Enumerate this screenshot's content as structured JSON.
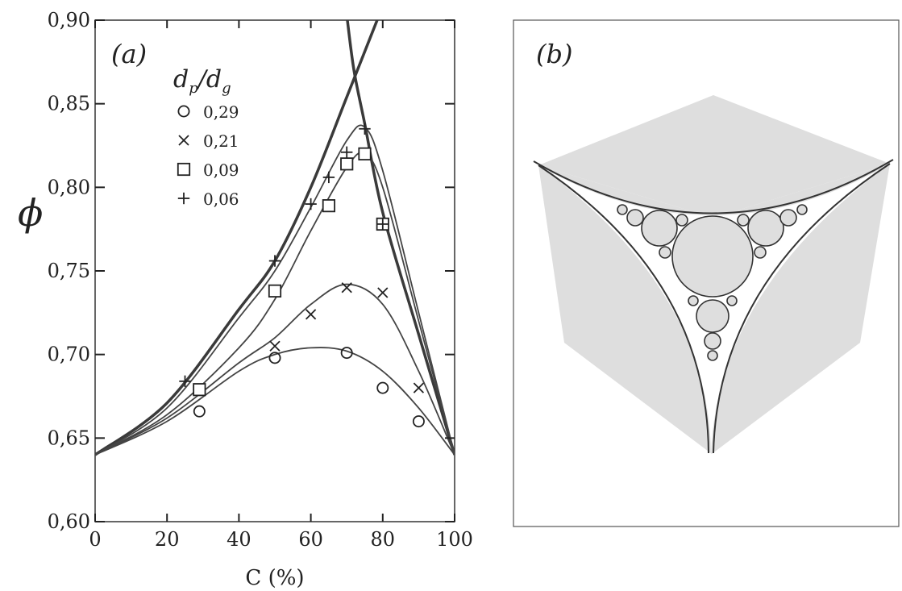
{
  "panels": {
    "a_label": "(a)",
    "b_label": "(b)"
  },
  "chart_data": {
    "type": "scatter",
    "title": "",
    "xlabel": "C (%)",
    "ylabel": "ϕ",
    "xlim": [
      0,
      100
    ],
    "ylim": [
      0.6,
      0.9
    ],
    "x_ticks": [
      0,
      20,
      40,
      60,
      80,
      100
    ],
    "x_tick_labels": [
      "0",
      "20",
      "40",
      "60",
      "80",
      "100"
    ],
    "y_ticks": [
      0.6,
      0.65,
      0.7,
      0.75,
      0.8,
      0.85,
      0.9
    ],
    "y_tick_labels": [
      "0,60",
      "0,65",
      "0,70",
      "0,75",
      "0,80",
      "0,85",
      "0,90"
    ],
    "grid": false,
    "legend": {
      "title": "dp/dg",
      "position": "top-left"
    },
    "series": [
      {
        "name": "0,29",
        "marker": "circle",
        "points": [
          [
            29,
            0.666
          ],
          [
            50,
            0.698
          ],
          [
            70,
            0.701
          ],
          [
            80,
            0.68
          ],
          [
            90,
            0.66
          ]
        ],
        "fit": [
          [
            0,
            0.64
          ],
          [
            20,
            0.66
          ],
          [
            40,
            0.69
          ],
          [
            50,
            0.7
          ],
          [
            60,
            0.704
          ],
          [
            70,
            0.702
          ],
          [
            80,
            0.69
          ],
          [
            90,
            0.668
          ],
          [
            100,
            0.64
          ]
        ]
      },
      {
        "name": "0,21",
        "marker": "cross",
        "points": [
          [
            50,
            0.705
          ],
          [
            60,
            0.724
          ],
          [
            70,
            0.74
          ],
          [
            80,
            0.737
          ],
          [
            90,
            0.68
          ]
        ],
        "fit": [
          [
            0,
            0.64
          ],
          [
            20,
            0.662
          ],
          [
            40,
            0.695
          ],
          [
            50,
            0.71
          ],
          [
            60,
            0.73
          ],
          [
            70,
            0.742
          ],
          [
            80,
            0.73
          ],
          [
            90,
            0.69
          ],
          [
            100,
            0.64
          ]
        ]
      },
      {
        "name": "0,09",
        "marker": "square",
        "points": [
          [
            29,
            0.679
          ],
          [
            50,
            0.738
          ],
          [
            65,
            0.789
          ],
          [
            70,
            0.814
          ],
          [
            75,
            0.82
          ],
          [
            80,
            0.778
          ]
        ],
        "fit": [
          [
            0,
            0.64
          ],
          [
            20,
            0.664
          ],
          [
            40,
            0.704
          ],
          [
            50,
            0.733
          ],
          [
            60,
            0.774
          ],
          [
            70,
            0.812
          ],
          [
            75,
            0.82
          ],
          [
            80,
            0.8
          ],
          [
            90,
            0.72
          ],
          [
            100,
            0.64
          ]
        ]
      },
      {
        "name": "0,06",
        "marker": "plus",
        "points": [
          [
            25,
            0.684
          ],
          [
            50,
            0.756
          ],
          [
            60,
            0.79
          ],
          [
            65,
            0.806
          ],
          [
            70,
            0.821
          ],
          [
            75,
            0.835
          ],
          [
            80,
            0.778
          ]
        ],
        "fit": [
          [
            0,
            0.64
          ],
          [
            20,
            0.668
          ],
          [
            40,
            0.722
          ],
          [
            50,
            0.75
          ],
          [
            60,
            0.788
          ],
          [
            70,
            0.828
          ],
          [
            75,
            0.836
          ],
          [
            80,
            0.81
          ],
          [
            90,
            0.725
          ],
          [
            100,
            0.64
          ]
        ]
      }
    ],
    "envelope_lines": [
      [
        [
          0,
          0.64
        ],
        [
          20,
          0.671
        ],
        [
          40,
          0.727
        ],
        [
          50,
          0.756
        ],
        [
          60,
          0.8
        ],
        [
          70,
          0.854
        ],
        [
          79,
          0.903
        ]
      ],
      [
        [
          70,
          0.903
        ],
        [
          72,
          0.87
        ],
        [
          75,
          0.838
        ],
        [
          80,
          0.785
        ],
        [
          90,
          0.712
        ],
        [
          100,
          0.64
        ]
      ]
    ]
  },
  "legend_labels": [
    "0,29",
    "0,21",
    "0,09",
    "0,06"
  ]
}
